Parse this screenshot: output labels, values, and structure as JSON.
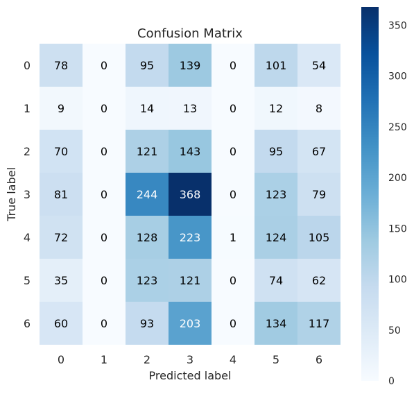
{
  "chart_data": {
    "type": "heatmap",
    "title": "Confusion Matrix",
    "xlabel": "Predicted label",
    "ylabel": "True label",
    "x_categories": [
      "0",
      "1",
      "2",
      "3",
      "4",
      "5",
      "6"
    ],
    "y_categories": [
      "0",
      "1",
      "2",
      "3",
      "4",
      "5",
      "6"
    ],
    "matrix": [
      [
        78,
        0,
        95,
        139,
        0,
        101,
        54
      ],
      [
        9,
        0,
        14,
        13,
        0,
        12,
        8
      ],
      [
        70,
        0,
        121,
        143,
        0,
        95,
        67
      ],
      [
        81,
        0,
        244,
        368,
        0,
        123,
        79
      ],
      [
        72,
        0,
        128,
        223,
        1,
        124,
        105
      ],
      [
        35,
        0,
        123,
        121,
        0,
        74,
        62
      ],
      [
        60,
        0,
        93,
        203,
        0,
        134,
        117
      ]
    ],
    "colormap": "Blues",
    "colorbar": {
      "range": [
        0,
        368
      ],
      "ticks": [
        0,
        50,
        100,
        150,
        200,
        250,
        300,
        350
      ],
      "tick_labels": [
        "0",
        "50",
        "100",
        "150",
        "200",
        "250",
        "300",
        "350"
      ]
    },
    "grid": false
  }
}
